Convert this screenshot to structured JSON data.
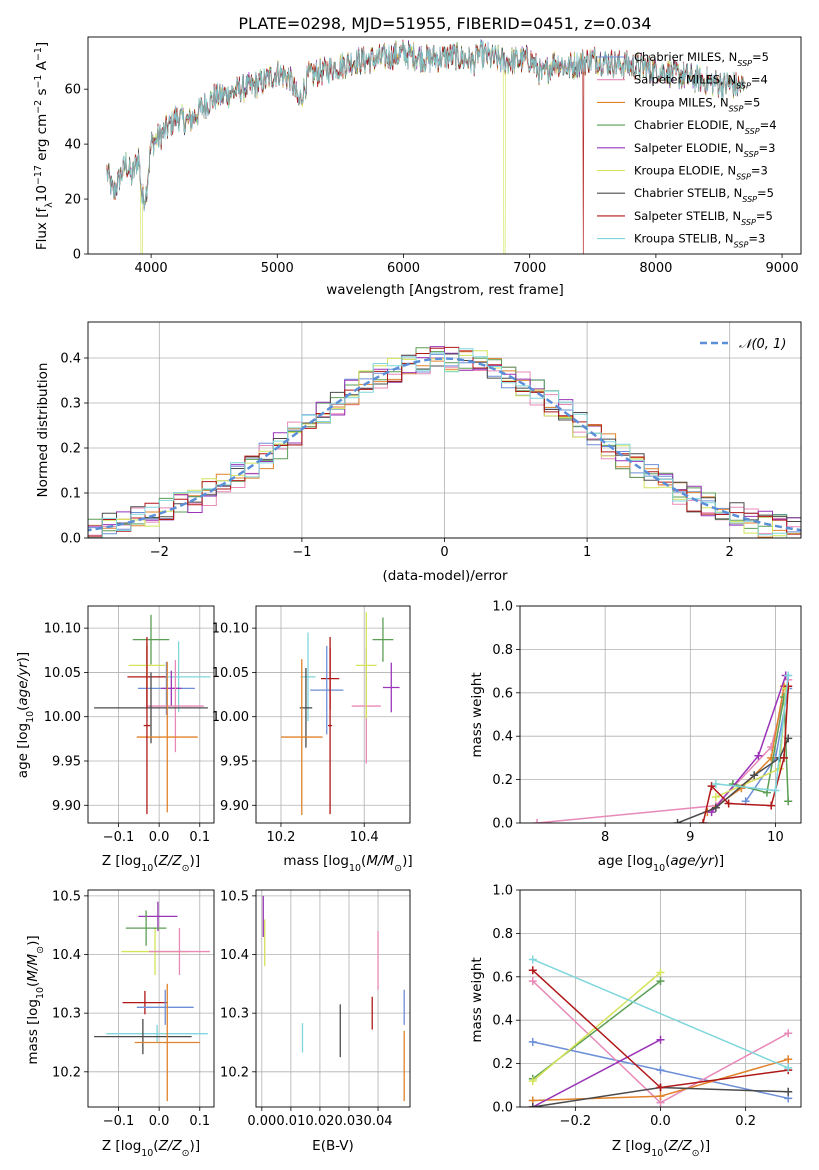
{
  "chart_data": [
    {
      "id": "spectrum",
      "type": "line",
      "title": "PLATE=0298, MJD=51955, FIBERID=0451, z=0.034",
      "xlabel": "wavelength [Angstrom, rest frame]",
      "ylabel": "Flux [f_λ 10⁻¹⁷ erg cm⁻² s⁻¹ A⁻¹]",
      "xlim": [
        3500,
        9150
      ],
      "ylim": [
        0,
        79
      ],
      "xticks": [
        4000,
        5000,
        6000,
        7000,
        8000,
        9000
      ],
      "yticks": [
        0,
        20,
        40,
        60
      ],
      "grid": false,
      "legend_position": "upper right",
      "spectrum_anchor_points": {
        "x": [
          3650,
          3700,
          3800,
          3850,
          3900,
          3930,
          3960,
          4000,
          4100,
          4200,
          4300,
          4400,
          4500,
          4600,
          4700,
          4800,
          4900,
          5000,
          5100,
          5170,
          5250,
          5400,
          5600,
          5800,
          6000,
          6200,
          6400,
          6560,
          6600,
          6800,
          7000,
          7100,
          7200,
          7300,
          7500,
          7700,
          7900,
          8100,
          8300,
          8500,
          8700
        ],
        "y": [
          30,
          22,
          33,
          28,
          36,
          20,
          22,
          40,
          44,
          50,
          48,
          53,
          57,
          58,
          60,
          61,
          63,
          66,
          64,
          55,
          65,
          67,
          70,
          71,
          73,
          71,
          72,
          70,
          73,
          70,
          71,
          65,
          70,
          68,
          71,
          69,
          68,
          66,
          64,
          62,
          61
        ]
      },
      "series": [
        {
          "name": "Chabrier MILES, N_SSP=5",
          "color": "#6d8fd8"
        },
        {
          "name": "Salpeter MILES, N_SSP=4",
          "color": "#e889b8"
        },
        {
          "name": "Kroupa MILES, N_SSP=5",
          "color": "#e0822b"
        },
        {
          "name": "Chabrier ELODIE, N_SSP=4",
          "color": "#5b9e54"
        },
        {
          "name": "Salpeter ELODIE, N_SSP=3",
          "color": "#9a35b8"
        },
        {
          "name": "Kroupa ELODIE, N_SSP=3",
          "color": "#d4e35a"
        },
        {
          "name": "Chabrier STELIB, N_SSP=5",
          "color": "#4b4b4b"
        },
        {
          "name": "Salpeter STELIB, N_SSP=5",
          "color": "#b01818"
        },
        {
          "name": "Kroupa STELIB, N_SSP=3",
          "color": "#7fd6dc"
        }
      ]
    },
    {
      "id": "residuals",
      "type": "histogram",
      "xlabel": "(data-model)/error",
      "ylabel": "Normed distribution",
      "xlim": [
        -2.5,
        2.5
      ],
      "ylim": [
        0,
        0.48
      ],
      "xticks": [
        -2,
        -1,
        0,
        1,
        2
      ],
      "yticks": [
        0.0,
        0.1,
        0.2,
        0.3,
        0.4
      ],
      "grid": true,
      "bin_width": 0.1,
      "legend": [
        {
          "name": "𝒩(0, 1)",
          "color": "#5b8fd8",
          "style": "dashed"
        }
      ],
      "legend_position": "upper right"
    },
    {
      "id": "age_vs_Z",
      "type": "scatter",
      "xlabel": "Z [log₁₀(Z/Z☉)]",
      "ylabel": "age  [log₁₀(age/yr)]",
      "xlim": [
        -0.175,
        0.135
      ],
      "ylim": [
        9.88,
        10.125
      ],
      "xticks": [
        -0.1,
        0.0,
        0.1
      ],
      "yticks": [
        9.9,
        9.95,
        10.0,
        10.05,
        10.1
      ],
      "grid": true,
      "points": [
        {
          "x": 0.048,
          "y": 10.045,
          "xerr": 0.078,
          "yerr": 0.04,
          "color": "#7fd6dc"
        },
        {
          "x": -0.03,
          "y": 10.045,
          "xerr": 0.048,
          "yerr": 0.035,
          "color": "#b01818"
        },
        {
          "x": 0.018,
          "y": 10.032,
          "xerr": 0.07,
          "yerr": 0.03,
          "color": "#6d8fd8"
        },
        {
          "x": 0.03,
          "y": 10.032,
          "xerr": 0.025,
          "yerr": 0.02,
          "color": "#9a35b8"
        },
        {
          "x": 0.04,
          "y": 10.012,
          "xerr": 0.07,
          "yerr": 0.052,
          "color": "#e889b8"
        },
        {
          "x": -0.03,
          "y": 10.058,
          "xerr": 0.045,
          "yerr": 0.025,
          "color": "#d4e35a"
        },
        {
          "x": -0.02,
          "y": 10.087,
          "xerr": 0.045,
          "yerr": 0.028,
          "color": "#5b9e54"
        },
        {
          "x": -0.02,
          "y": 10.01,
          "xerr": 0.14,
          "yerr": 0.04,
          "color": "#4b4b4b"
        },
        {
          "x": 0.02,
          "y": 9.977,
          "xerr": 0.075,
          "yerr": 0.085,
          "color": "#e0822b"
        },
        {
          "x": -0.03,
          "y": 9.99,
          "xerr": 0.008,
          "yerr": 0.1,
          "color": "#b01818"
        }
      ]
    },
    {
      "id": "age_vs_mass",
      "type": "scatter",
      "xlabel": "mass [log₁₀(M/M☉)]",
      "xlim": [
        10.14,
        10.51
      ],
      "ylim": [
        9.88,
        10.125
      ],
      "xticks": [
        10.2,
        10.4
      ],
      "yticks": [
        9.9,
        9.95,
        10.0,
        10.05,
        10.1
      ],
      "grid": true,
      "points": [
        {
          "x": 10.265,
          "y": 10.045,
          "xerr": 0.018,
          "yerr": 0.05,
          "color": "#7fd6dc"
        },
        {
          "x": 10.318,
          "y": 10.043,
          "xerr": 0.022,
          "yerr": 0.035,
          "color": "#b01818"
        },
        {
          "x": 10.31,
          "y": 10.03,
          "xerr": 0.04,
          "yerr": 0.05,
          "color": "#6d8fd8"
        },
        {
          "x": 10.465,
          "y": 10.033,
          "xerr": 0.02,
          "yerr": 0.028,
          "color": "#9a35b8"
        },
        {
          "x": 10.405,
          "y": 10.012,
          "xerr": 0.035,
          "yerr": 0.065,
          "color": "#e889b8"
        },
        {
          "x": 10.405,
          "y": 10.058,
          "xerr": 0.025,
          "yerr": 0.06,
          "color": "#d4e35a"
        },
        {
          "x": 10.445,
          "y": 10.087,
          "xerr": 0.025,
          "yerr": 0.025,
          "color": "#5b9e54"
        },
        {
          "x": 10.26,
          "y": 10.01,
          "xerr": 0.015,
          "yerr": 0.045,
          "color": "#4b4b4b"
        },
        {
          "x": 10.25,
          "y": 9.977,
          "xerr": 0.05,
          "yerr": 0.088,
          "color": "#e0822b"
        },
        {
          "x": 10.318,
          "y": 9.99,
          "xerr": 0.005,
          "yerr": 0.1,
          "color": "#b01818"
        }
      ]
    },
    {
      "id": "weight_vs_age",
      "type": "line",
      "xlabel": "age  [log₁₀(age/yr)]",
      "ylabel": "mass weight",
      "xlim": [
        7.0,
        10.3
      ],
      "ylim": [
        0.0,
        1.0
      ],
      "xticks": [
        8,
        9,
        10
      ],
      "yticks": [
        0.0,
        0.2,
        0.4,
        0.6,
        0.8,
        1.0
      ],
      "grid": true,
      "series": [
        {
          "name": "Chabrier MILES",
          "color": "#6d8fd8",
          "x": [
            9.65,
            10.0,
            10.15
          ],
          "y": [
            0.1,
            0.3,
            0.62
          ]
        },
        {
          "name": "Salpeter MILES",
          "color": "#e889b8",
          "x": [
            7.2,
            9.3,
            9.95,
            10.15
          ],
          "y": [
            0.0,
            0.08,
            0.35,
            0.66
          ]
        },
        {
          "name": "Kroupa MILES",
          "color": "#e0822b",
          "x": [
            9.2,
            9.6,
            9.95,
            10.1
          ],
          "y": [
            0.05,
            0.16,
            0.3,
            0.63
          ]
        },
        {
          "name": "Chabrier ELODIE",
          "color": "#5b9e54",
          "x": [
            9.5,
            9.9,
            10.1,
            10.15
          ],
          "y": [
            0.18,
            0.14,
            0.58,
            0.1
          ]
        },
        {
          "name": "Salpeter ELODIE",
          "color": "#9a35b8",
          "x": [
            9.25,
            9.8,
            10.12
          ],
          "y": [
            0.05,
            0.31,
            0.68
          ]
        },
        {
          "name": "Kroupa ELODIE",
          "color": "#d4e35a",
          "x": [
            9.3,
            10.05,
            10.12
          ],
          "y": [
            0.12,
            0.25,
            0.62
          ]
        },
        {
          "name": "Chabrier STELIB",
          "color": "#4b4b4b",
          "x": [
            8.85,
            9.3,
            9.75,
            10.05,
            10.15
          ],
          "y": [
            0.0,
            0.07,
            0.22,
            0.3,
            0.39
          ]
        },
        {
          "name": "Salpeter STELIB",
          "color": "#b01818",
          "x": [
            9.15,
            9.25,
            9.45,
            9.95,
            10.1,
            10.15
          ],
          "y": [
            0.0,
            0.17,
            0.09,
            0.08,
            0.3,
            0.63
          ]
        },
        {
          "name": "Kroupa STELIB",
          "color": "#7fd6dc",
          "x": [
            9.3,
            10.0,
            10.15
          ],
          "y": [
            0.18,
            0.15,
            0.68
          ]
        }
      ]
    },
    {
      "id": "mass_vs_Z",
      "type": "scatter",
      "xlabel": "Z [log₁₀(Z/Z☉)]",
      "ylabel": "mass [log₁₀(M/M☉)]",
      "xlim": [
        -0.175,
        0.135
      ],
      "ylim": [
        10.14,
        10.51
      ],
      "xticks": [
        -0.1,
        0.0,
        0.1
      ],
      "yticks": [
        10.2,
        10.3,
        10.4,
        10.5
      ],
      "grid": true,
      "points": [
        {
          "x": -0.01,
          "y": 10.405,
          "xerr": 0.083,
          "yerr": 0.04,
          "color": "#d4e35a"
        },
        {
          "x": 0.05,
          "y": 10.405,
          "xerr": 0.075,
          "yerr": 0.04,
          "color": "#e889b8"
        },
        {
          "x": -0.003,
          "y": 10.465,
          "xerr": 0.048,
          "yerr": 0.025,
          "color": "#9a35b8"
        },
        {
          "x": -0.032,
          "y": 10.445,
          "xerr": 0.05,
          "yerr": 0.03,
          "color": "#5b9e54"
        },
        {
          "x": -0.035,
          "y": 10.318,
          "xerr": 0.055,
          "yerr": 0.02,
          "color": "#b01818"
        },
        {
          "x": 0.015,
          "y": 10.31,
          "xerr": 0.07,
          "yerr": 0.03,
          "color": "#6d8fd8"
        },
        {
          "x": -0.005,
          "y": 10.265,
          "xerr": 0.125,
          "yerr": 0.015,
          "color": "#7fd6dc"
        },
        {
          "x": -0.04,
          "y": 10.26,
          "xerr": 0.12,
          "yerr": 0.03,
          "color": "#4b4b4b"
        },
        {
          "x": 0.02,
          "y": 10.25,
          "xerr": 0.08,
          "yerr": 0.1,
          "color": "#e0822b"
        }
      ]
    },
    {
      "id": "mass_vs_ebv",
      "type": "scatter",
      "xlabel": "E(B-V)",
      "xlim": [
        -0.002,
        0.051
      ],
      "ylim": [
        10.14,
        10.51
      ],
      "xticks": [
        0.0,
        0.01,
        0.02,
        0.03,
        0.04
      ],
      "yticks": [
        10.2,
        10.3,
        10.4,
        10.5
      ],
      "grid": true,
      "points": [
        {
          "x": 0.0005,
          "y": 10.465,
          "yerr": 0.035,
          "color": "#9a35b8"
        },
        {
          "x": 0.001,
          "y": 10.42,
          "yerr": 0.04,
          "color": "#d4e35a"
        },
        {
          "x": 0.014,
          "y": 10.258,
          "yerr": 0.025,
          "color": "#7fd6dc"
        },
        {
          "x": 0.027,
          "y": 10.27,
          "yerr": 0.045,
          "color": "#4b4b4b"
        },
        {
          "x": 0.038,
          "y": 10.3,
          "yerr": 0.028,
          "color": "#b01818"
        },
        {
          "x": 0.04,
          "y": 10.39,
          "yerr": 0.05,
          "color": "#e889b8"
        },
        {
          "x": 0.049,
          "y": 10.31,
          "yerr": 0.03,
          "color": "#6d8fd8"
        },
        {
          "x": 0.049,
          "y": 10.21,
          "yerr": 0.06,
          "color": "#e0822b"
        }
      ]
    },
    {
      "id": "weight_vs_Z",
      "type": "line",
      "xlabel": "Z [log₁₀(Z/Z☉)]",
      "ylabel": "mass weight",
      "xlim": [
        -0.33,
        0.33
      ],
      "ylim": [
        0.0,
        1.0
      ],
      "xticks": [
        -0.2,
        0.0,
        0.2
      ],
      "yticks": [
        0.0,
        0.2,
        0.4,
        0.6,
        0.8,
        1.0
      ],
      "grid": true,
      "series": [
        {
          "name": "Chabrier MILES",
          "color": "#6d8fd8",
          "x": [
            -0.3,
            0.0,
            0.3
          ],
          "y": [
            0.3,
            0.17,
            0.04
          ]
        },
        {
          "name": "Salpeter MILES",
          "color": "#e889b8",
          "x": [
            -0.3,
            0.0,
            0.3
          ],
          "y": [
            0.58,
            0.02,
            0.34
          ]
        },
        {
          "name": "Kroupa MILES",
          "color": "#e0822b",
          "x": [
            -0.3,
            0.0,
            0.3
          ],
          "y": [
            0.03,
            0.05,
            0.22
          ]
        },
        {
          "name": "Chabrier ELODIE",
          "color": "#5b9e54",
          "x": [
            -0.3,
            0.0
          ],
          "y": [
            0.13,
            0.58
          ]
        },
        {
          "name": "Salpeter ELODIE",
          "color": "#9a35b8",
          "x": [
            -0.3,
            0.0
          ],
          "y": [
            0.0,
            0.31
          ]
        },
        {
          "name": "Kroupa ELODIE",
          "color": "#d4e35a",
          "x": [
            -0.3,
            0.0
          ],
          "y": [
            0.12,
            0.62
          ]
        },
        {
          "name": "Chabrier STELIB",
          "color": "#4b4b4b",
          "x": [
            -0.3,
            0.0,
            0.3
          ],
          "y": [
            0.0,
            0.09,
            0.07
          ]
        },
        {
          "name": "Salpeter STELIB",
          "color": "#b01818",
          "x": [
            -0.3,
            0.0,
            0.3
          ],
          "y": [
            0.63,
            0.09,
            0.17
          ]
        },
        {
          "name": "Kroupa STELIB",
          "color": "#7fd6dc",
          "x": [
            -0.3,
            0.3
          ],
          "y": [
            0.68,
            0.18
          ]
        }
      ]
    }
  ]
}
